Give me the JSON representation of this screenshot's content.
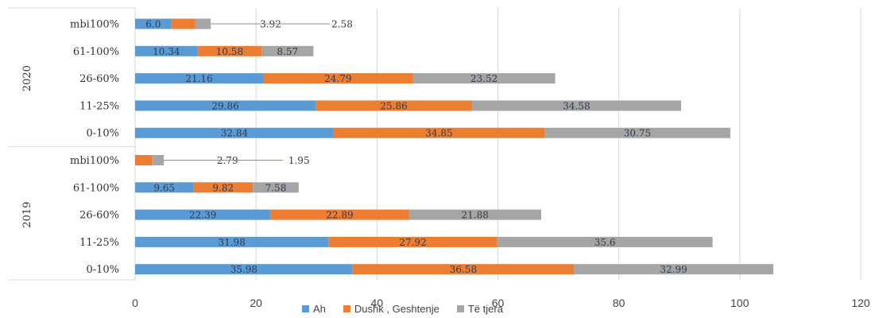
{
  "chart_data": {
    "type": "bar",
    "orientation": "horizontal",
    "stacked": true,
    "title": "",
    "xlabel": "",
    "ylabel": "",
    "xlim": [
      0,
      120
    ],
    "xticks": [
      0,
      20,
      40,
      60,
      80,
      100,
      120
    ],
    "grid": true,
    "legend_position": "bottom",
    "groups": [
      {
        "name": "2020",
        "categories": [
          "mbi100%",
          "61-100%",
          "26-60%",
          "11-25%",
          "0-10%"
        ]
      },
      {
        "name": "2019",
        "categories": [
          "mbi100%",
          "61-100%",
          "26-60%",
          "11-25%",
          "0-10%"
        ]
      }
    ],
    "series": [
      {
        "name": "Ah",
        "color": "#5b9bd5",
        "values": [
          6.0,
          10.34,
          21.16,
          29.86,
          32.84,
          0,
          9.65,
          22.39,
          31.98,
          35.98
        ],
        "labels": [
          "6.0",
          "10.34",
          "21.16",
          "29.86",
          "32.84",
          "",
          "9.65",
          "22.39",
          "31.98",
          "35.98"
        ]
      },
      {
        "name": "Dushk , Geshtenje",
        "color": "#ed7d31",
        "values": [
          3.92,
          10.58,
          24.79,
          25.86,
          34.85,
          2.79,
          9.82,
          22.89,
          27.92,
          36.58
        ],
        "labels": [
          "3.92",
          "10.58",
          "24.79",
          "25.86",
          "34.85",
          "2.79",
          "9.82",
          "22.89",
          "27.92",
          "36.58"
        ]
      },
      {
        "name": "Të tjera",
        "color": "#a5a5a5",
        "values": [
          2.58,
          8.57,
          23.52,
          34.58,
          30.75,
          1.95,
          7.58,
          21.88,
          35.6,
          32.99
        ],
        "labels": [
          "2.58",
          "8.57",
          "23.52",
          "34.58",
          "30.75",
          "1.95",
          "7.58",
          "21.88",
          "35.6",
          "32.99"
        ]
      }
    ],
    "callouts": [
      0,
      5
    ]
  }
}
